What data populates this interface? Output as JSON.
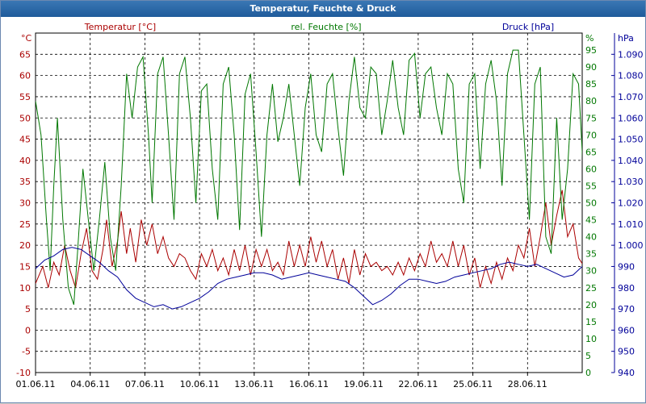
{
  "window": {
    "title": "Temperatur, Feuchte & Druck"
  },
  "chart_data": {
    "type": "line",
    "title": "Temperatur, Feuchte & Druck",
    "x_ticks": [
      "01.06.11",
      "04.06.11",
      "07.06.11",
      "10.06.11",
      "13.06.11",
      "16.06.11",
      "19.06.11",
      "22.06.11",
      "25.06.11",
      "28.06.11"
    ],
    "x_range_days": [
      0,
      30
    ],
    "grid": true,
    "axes": {
      "temperature": {
        "label": "Temperatur [°C]",
        "unit": "°C",
        "range": [
          -10,
          70
        ],
        "ticks": [
          -10,
          -5,
          0,
          5,
          10,
          15,
          20,
          25,
          30,
          35,
          40,
          45,
          50,
          55,
          60,
          65
        ],
        "color": "#aa0000"
      },
      "humidity": {
        "label": "rel. Feuchte [%]",
        "unit": "%",
        "range": [
          0,
          100
        ],
        "ticks": [
          0,
          5,
          10,
          15,
          20,
          25,
          30,
          35,
          40,
          45,
          50,
          55,
          60,
          65,
          70,
          75,
          80,
          85,
          90,
          95
        ],
        "color": "#007700"
      },
      "pressure": {
        "label": "Druck [hPa]",
        "unit": "hPa",
        "range": [
          940,
          1100
        ],
        "ticks": [
          "940",
          "950",
          "960",
          "970",
          "980",
          "990",
          "1.000",
          "1.010",
          "1.020",
          "1.030",
          "1.040",
          "1.050",
          "1.060",
          "1.070",
          "1.080",
          "1.090"
        ],
        "color": "#000099"
      }
    },
    "series": [
      {
        "name": "Temperatur [°C]",
        "axis": "temperature",
        "color": "#aa0000",
        "points": [
          [
            0,
            11
          ],
          [
            0.4,
            15
          ],
          [
            0.7,
            10
          ],
          [
            1.0,
            16
          ],
          [
            1.3,
            13
          ],
          [
            1.6,
            20
          ],
          [
            1.9,
            14
          ],
          [
            2.2,
            10
          ],
          [
            2.5,
            18
          ],
          [
            2.8,
            24
          ],
          [
            3.1,
            14
          ],
          [
            3.4,
            12
          ],
          [
            3.7,
            19
          ],
          [
            3.9,
            26
          ],
          [
            4.2,
            15
          ],
          [
            4.5,
            21
          ],
          [
            4.7,
            28
          ],
          [
            5.0,
            18
          ],
          [
            5.2,
            24
          ],
          [
            5.5,
            16
          ],
          [
            5.8,
            26
          ],
          [
            6.1,
            20
          ],
          [
            6.4,
            25
          ],
          [
            6.7,
            18
          ],
          [
            7.0,
            22
          ],
          [
            7.3,
            17
          ],
          [
            7.6,
            15
          ],
          [
            7.9,
            18
          ],
          [
            8.2,
            17
          ],
          [
            8.5,
            14
          ],
          [
            8.8,
            12
          ],
          [
            9.1,
            18
          ],
          [
            9.4,
            15
          ],
          [
            9.7,
            19
          ],
          [
            10.0,
            14
          ],
          [
            10.3,
            17
          ],
          [
            10.6,
            13
          ],
          [
            10.9,
            19
          ],
          [
            11.2,
            14
          ],
          [
            11.5,
            20
          ],
          [
            11.8,
            13
          ],
          [
            12.1,
            19
          ],
          [
            12.4,
            15
          ],
          [
            12.7,
            19
          ],
          [
            13.0,
            14
          ],
          [
            13.3,
            16
          ],
          [
            13.6,
            13
          ],
          [
            13.9,
            21
          ],
          [
            14.2,
            15
          ],
          [
            14.5,
            20
          ],
          [
            14.8,
            15
          ],
          [
            15.1,
            22
          ],
          [
            15.4,
            16
          ],
          [
            15.7,
            21
          ],
          [
            16.0,
            15
          ],
          [
            16.3,
            19
          ],
          [
            16.6,
            12
          ],
          [
            16.9,
            17
          ],
          [
            17.2,
            11
          ],
          [
            17.5,
            19
          ],
          [
            17.8,
            13
          ],
          [
            18.1,
            18
          ],
          [
            18.4,
            15
          ],
          [
            18.7,
            16
          ],
          [
            19.0,
            14
          ],
          [
            19.3,
            15
          ],
          [
            19.6,
            13
          ],
          [
            19.9,
            16
          ],
          [
            20.2,
            13
          ],
          [
            20.5,
            17
          ],
          [
            20.8,
            14
          ],
          [
            21.1,
            18
          ],
          [
            21.4,
            15
          ],
          [
            21.7,
            21
          ],
          [
            22.0,
            16
          ],
          [
            22.3,
            18
          ],
          [
            22.6,
            15
          ],
          [
            22.9,
            21
          ],
          [
            23.2,
            15
          ],
          [
            23.5,
            20
          ],
          [
            23.8,
            13
          ],
          [
            24.1,
            17
          ],
          [
            24.4,
            10
          ],
          [
            24.7,
            15
          ],
          [
            25.0,
            11
          ],
          [
            25.3,
            16
          ],
          [
            25.6,
            12
          ],
          [
            25.9,
            17
          ],
          [
            26.2,
            14
          ],
          [
            26.5,
            20
          ],
          [
            26.8,
            17
          ],
          [
            27.1,
            24
          ],
          [
            27.4,
            15
          ],
          [
            27.7,
            22
          ],
          [
            28.0,
            30
          ],
          [
            28.3,
            20
          ],
          [
            28.6,
            27
          ],
          [
            28.9,
            33
          ],
          [
            29.2,
            22
          ],
          [
            29.5,
            25
          ],
          [
            29.8,
            17
          ],
          [
            30.1,
            15
          ],
          [
            30.4,
            18
          ],
          [
            30.8,
            13
          ]
        ]
      },
      {
        "name": "rel. Feuchte [%]",
        "axis": "humidity",
        "color": "#007700",
        "points": [
          [
            0,
            80
          ],
          [
            0.3,
            70
          ],
          [
            0.6,
            45
          ],
          [
            0.8,
            30
          ],
          [
            1.0,
            55
          ],
          [
            1.2,
            75
          ],
          [
            1.5,
            45
          ],
          [
            1.8,
            25
          ],
          [
            2.1,
            20
          ],
          [
            2.3,
            35
          ],
          [
            2.6,
            60
          ],
          [
            2.9,
            45
          ],
          [
            3.2,
            30
          ],
          [
            3.5,
            45
          ],
          [
            3.8,
            62
          ],
          [
            4.1,
            40
          ],
          [
            4.4,
            30
          ],
          [
            4.7,
            55
          ],
          [
            5.0,
            88
          ],
          [
            5.3,
            75
          ],
          [
            5.6,
            90
          ],
          [
            5.9,
            93
          ],
          [
            6.2,
            70
          ],
          [
            6.4,
            50
          ],
          [
            6.7,
            88
          ],
          [
            7.0,
            93
          ],
          [
            7.3,
            70
          ],
          [
            7.6,
            45
          ],
          [
            7.9,
            88
          ],
          [
            8.2,
            93
          ],
          [
            8.5,
            75
          ],
          [
            8.8,
            50
          ],
          [
            9.1,
            83
          ],
          [
            9.4,
            85
          ],
          [
            9.7,
            60
          ],
          [
            10.0,
            45
          ],
          [
            10.3,
            85
          ],
          [
            10.6,
            90
          ],
          [
            10.9,
            70
          ],
          [
            11.2,
            42
          ],
          [
            11.5,
            82
          ],
          [
            11.8,
            88
          ],
          [
            12.1,
            65
          ],
          [
            12.4,
            40
          ],
          [
            12.7,
            70
          ],
          [
            13.0,
            85
          ],
          [
            13.3,
            68
          ],
          [
            13.6,
            75
          ],
          [
            13.9,
            85
          ],
          [
            14.2,
            70
          ],
          [
            14.5,
            55
          ],
          [
            14.8,
            78
          ],
          [
            15.1,
            88
          ],
          [
            15.4,
            70
          ],
          [
            15.7,
            65
          ],
          [
            16.0,
            85
          ],
          [
            16.3,
            88
          ],
          [
            16.6,
            72
          ],
          [
            16.9,
            58
          ],
          [
            17.2,
            80
          ],
          [
            17.5,
            93
          ],
          [
            17.8,
            78
          ],
          [
            18.1,
            75
          ],
          [
            18.4,
            90
          ],
          [
            18.7,
            88
          ],
          [
            19.0,
            70
          ],
          [
            19.3,
            80
          ],
          [
            19.6,
            92
          ],
          [
            19.9,
            78
          ],
          [
            20.2,
            70
          ],
          [
            20.5,
            92
          ],
          [
            20.8,
            94
          ],
          [
            21.1,
            75
          ],
          [
            21.4,
            88
          ],
          [
            21.7,
            90
          ],
          [
            22.0,
            78
          ],
          [
            22.3,
            70
          ],
          [
            22.6,
            88
          ],
          [
            22.9,
            85
          ],
          [
            23.2,
            60
          ],
          [
            23.5,
            50
          ],
          [
            23.8,
            85
          ],
          [
            24.1,
            88
          ],
          [
            24.4,
            60
          ],
          [
            24.7,
            85
          ],
          [
            25.0,
            92
          ],
          [
            25.3,
            80
          ],
          [
            25.6,
            55
          ],
          [
            25.9,
            88
          ],
          [
            26.2,
            95
          ],
          [
            26.5,
            95
          ],
          [
            26.8,
            70
          ],
          [
            27.1,
            45
          ],
          [
            27.4,
            85
          ],
          [
            27.7,
            90
          ],
          [
            28.0,
            40
          ],
          [
            28.3,
            35
          ],
          [
            28.6,
            75
          ],
          [
            28.9,
            45
          ],
          [
            29.2,
            60
          ],
          [
            29.5,
            88
          ],
          [
            29.8,
            85
          ],
          [
            30.1,
            55
          ],
          [
            30.4,
            45
          ],
          [
            30.7,
            75
          ],
          [
            30.9,
            80
          ]
        ]
      },
      {
        "name": "Druck [hPa]",
        "axis": "pressure",
        "color": "#000099",
        "points": [
          [
            0,
            989
          ],
          [
            0.5,
            993
          ],
          [
            1.0,
            995
          ],
          [
            1.5,
            998
          ],
          [
            2.0,
            999
          ],
          [
            2.5,
            998
          ],
          [
            3.0,
            995
          ],
          [
            3.5,
            992
          ],
          [
            4.0,
            988
          ],
          [
            4.5,
            985
          ],
          [
            5.0,
            979
          ],
          [
            5.5,
            975
          ],
          [
            6.0,
            973
          ],
          [
            6.5,
            971
          ],
          [
            7.0,
            972
          ],
          [
            7.5,
            970
          ],
          [
            8.0,
            971
          ],
          [
            8.5,
            973
          ],
          [
            9.0,
            975
          ],
          [
            9.5,
            978
          ],
          [
            10.0,
            982
          ],
          [
            10.5,
            984
          ],
          [
            11.0,
            985
          ],
          [
            11.5,
            986
          ],
          [
            12.0,
            987
          ],
          [
            12.5,
            987
          ],
          [
            13.0,
            986
          ],
          [
            13.5,
            984
          ],
          [
            14.0,
            985
          ],
          [
            14.5,
            986
          ],
          [
            15.0,
            987
          ],
          [
            15.5,
            986
          ],
          [
            16.0,
            985
          ],
          [
            16.5,
            984
          ],
          [
            17.0,
            983
          ],
          [
            17.5,
            980
          ],
          [
            18.0,
            976
          ],
          [
            18.5,
            972
          ],
          [
            19.0,
            974
          ],
          [
            19.5,
            977
          ],
          [
            20.0,
            981
          ],
          [
            20.5,
            984
          ],
          [
            21.0,
            984
          ],
          [
            21.5,
            983
          ],
          [
            22.0,
            982
          ],
          [
            22.5,
            983
          ],
          [
            23.0,
            985
          ],
          [
            23.5,
            986
          ],
          [
            24.0,
            987
          ],
          [
            24.5,
            988
          ],
          [
            25.0,
            989
          ],
          [
            25.5,
            991
          ],
          [
            26.0,
            992
          ],
          [
            26.5,
            991
          ],
          [
            27.0,
            990
          ],
          [
            27.5,
            991
          ],
          [
            28.0,
            989
          ],
          [
            28.5,
            987
          ],
          [
            29.0,
            985
          ],
          [
            29.5,
            986
          ],
          [
            30.0,
            990
          ],
          [
            30.5,
            992
          ],
          [
            30.9,
            991
          ]
        ]
      }
    ]
  }
}
